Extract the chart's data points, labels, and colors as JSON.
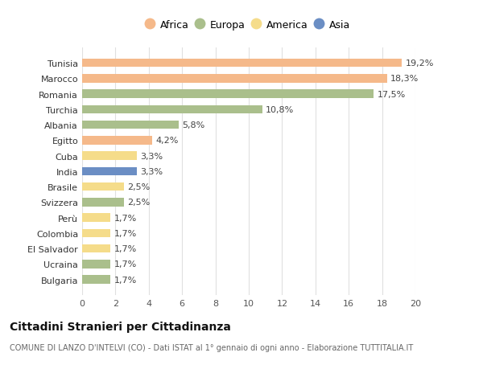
{
  "categories": [
    "Tunisia",
    "Marocco",
    "Romania",
    "Turchia",
    "Albania",
    "Egitto",
    "Cuba",
    "India",
    "Brasile",
    "Svizzera",
    "Perù",
    "Colombia",
    "El Salvador",
    "Ucraina",
    "Bulgaria"
  ],
  "values": [
    19.2,
    18.3,
    17.5,
    10.8,
    5.8,
    4.2,
    3.3,
    3.3,
    2.5,
    2.5,
    1.7,
    1.7,
    1.7,
    1.7,
    1.7
  ],
  "continents": [
    "Africa",
    "Africa",
    "Europa",
    "Europa",
    "Europa",
    "Africa",
    "America",
    "Asia",
    "America",
    "Europa",
    "America",
    "America",
    "America",
    "Europa",
    "Europa"
  ],
  "labels": [
    "19,2%",
    "18,3%",
    "17,5%",
    "10,8%",
    "5,8%",
    "4,2%",
    "3,3%",
    "3,3%",
    "2,5%",
    "2,5%",
    "1,7%",
    "1,7%",
    "1,7%",
    "1,7%",
    "1,7%"
  ],
  "continent_colors": {
    "Africa": "#F5B98A",
    "Europa": "#AABF8C",
    "America": "#F5DC8A",
    "Asia": "#6B8EC4"
  },
  "legend_items": [
    "Africa",
    "Europa",
    "America",
    "Asia"
  ],
  "legend_colors": [
    "#F5B98A",
    "#AABF8C",
    "#F5DC8A",
    "#6B8EC4"
  ],
  "title": "Cittadini Stranieri per Cittadinanza",
  "subtitle": "COMUNE DI LANZO D'INTELVI (CO) - Dati ISTAT al 1° gennaio di ogni anno - Elaborazione TUTTITALIA.IT",
  "xlim": [
    0,
    20
  ],
  "xticks": [
    0,
    2,
    4,
    6,
    8,
    10,
    12,
    14,
    16,
    18,
    20
  ],
  "background_color": "#ffffff",
  "grid_color": "#e0e0e0",
  "bar_height": 0.55,
  "label_fontsize": 8,
  "tick_fontsize": 8,
  "ytick_fontsize": 8,
  "title_fontsize": 10,
  "subtitle_fontsize": 7
}
